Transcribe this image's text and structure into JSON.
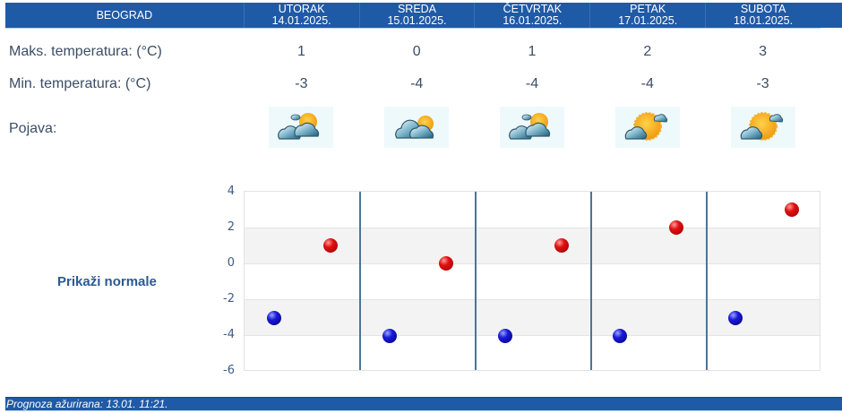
{
  "header": {
    "city": "BEOGRAD",
    "days": [
      {
        "name": "UTORAK",
        "date": "14.01.2025."
      },
      {
        "name": "SREDA",
        "date": "15.01.2025."
      },
      {
        "name": "ČETVRTAK",
        "date": "16.01.2025."
      },
      {
        "name": "PETAK",
        "date": "17.01.2025."
      },
      {
        "name": "SUBOTA",
        "date": "18.01.2025."
      }
    ]
  },
  "rows": {
    "max_label": "Maks. temperatura: (°C)",
    "max_values": [
      "1",
      "0",
      "1",
      "2",
      "3"
    ],
    "min_label": "Min. temperatura: (°C)",
    "min_values": [
      "-3",
      "-4",
      "-4",
      "-4",
      "-3"
    ],
    "weather_label": "Pojava:",
    "weather_icons": [
      "partly-cloudy-icon",
      "mostly-cloudy-icon",
      "partly-cloudy-icon",
      "mostly-sunny-icon",
      "mostly-sunny-icon"
    ]
  },
  "show_normals_label": "Prikaži normale",
  "chart_data": {
    "type": "scatter",
    "categories": [
      "UTORAK 14.01.2025.",
      "SREDA 15.01.2025.",
      "ČETVRTAK 16.01.2025.",
      "PETAK 17.01.2025.",
      "SUBOTA 18.01.2025."
    ],
    "series": [
      {
        "name": "Min. temperatura",
        "color": "#1a1ad8",
        "values": [
          -3,
          -4,
          -4,
          -4,
          -3
        ]
      },
      {
        "name": "Maks. temperatura",
        "color": "#e01010",
        "values": [
          1,
          0,
          1,
          2,
          3
        ]
      }
    ],
    "yticks": [
      "4",
      "2",
      "0",
      "-2",
      "-4",
      "-6"
    ],
    "ylim": [
      -6,
      4
    ],
    "grid": true,
    "title": "",
    "xlabel": "",
    "ylabel": ""
  },
  "footer": {
    "text": "Prognoza ažurirana:  13.01. 11:21."
  },
  "colors": {
    "header_bg": "#1f5aa6",
    "max_dot": "#e01010",
    "min_dot": "#1a1ad8"
  }
}
